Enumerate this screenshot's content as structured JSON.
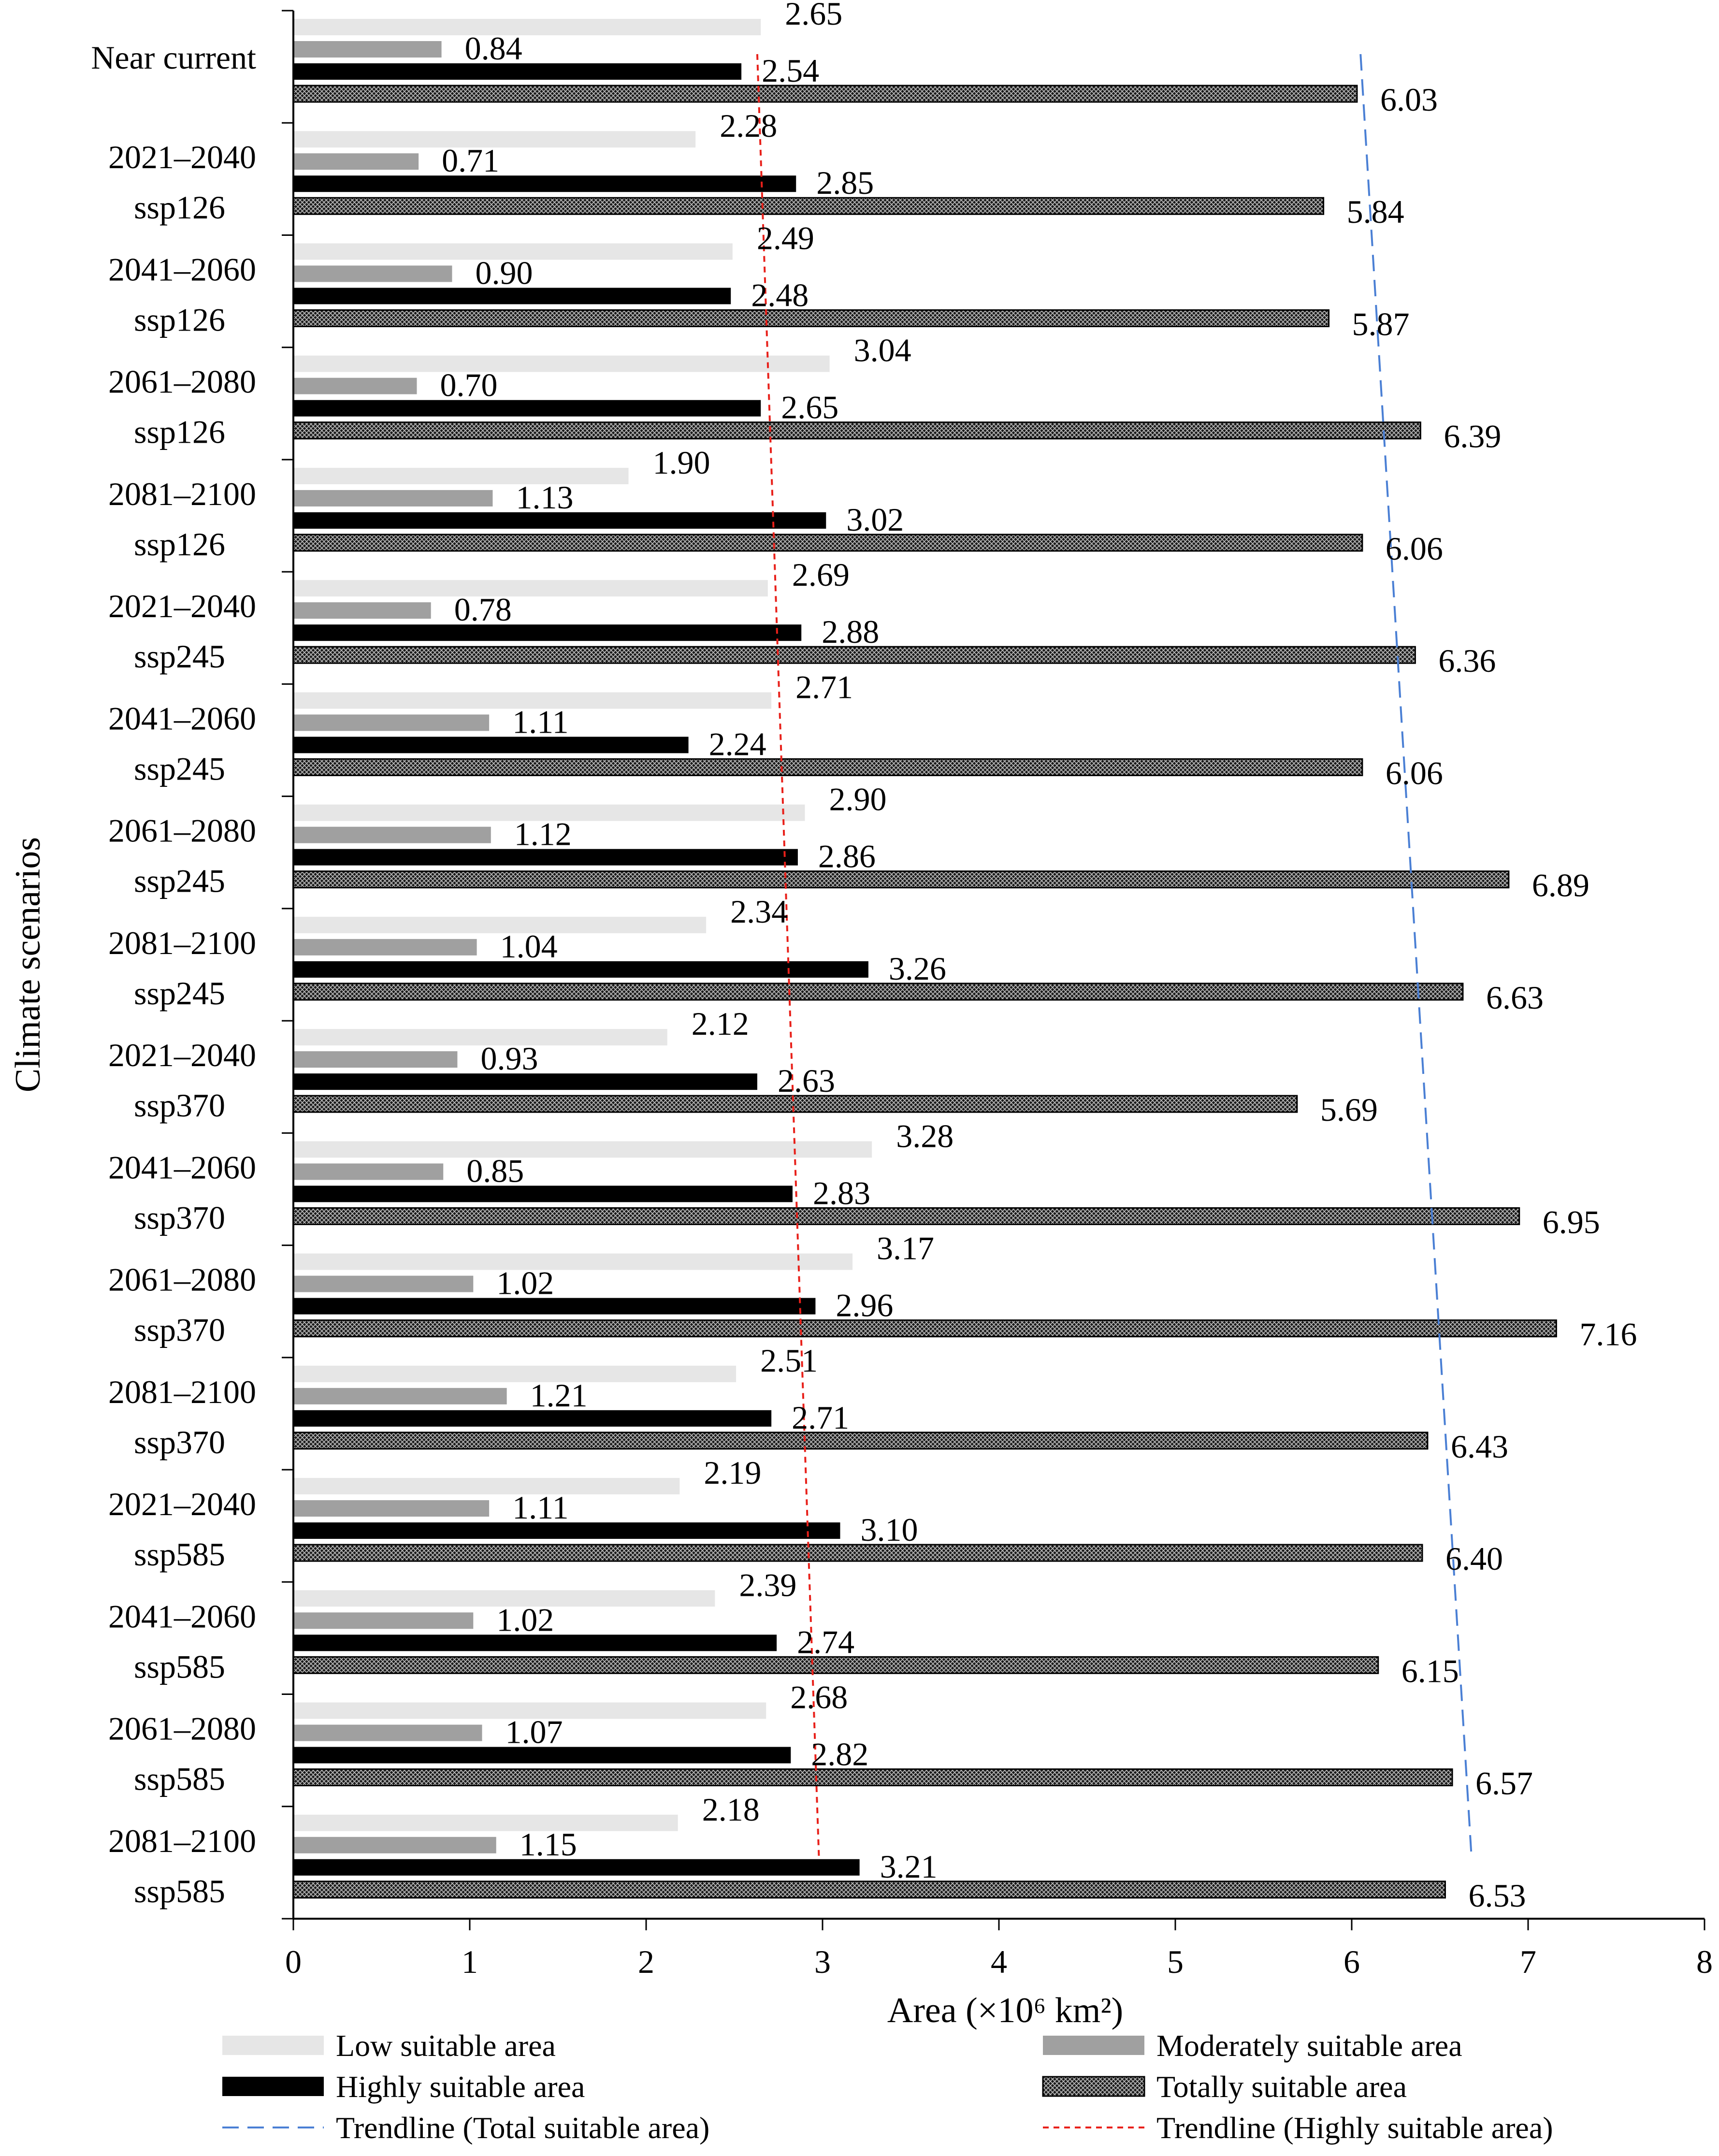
{
  "chart_data": {
    "type": "bar",
    "orientation": "horizontal",
    "categories": [
      [
        "Near current"
      ],
      [
        "2021–2040",
        "ssp126"
      ],
      [
        "2041–2060",
        "ssp126"
      ],
      [
        "2061–2080",
        "ssp126"
      ],
      [
        "2081–2100",
        "ssp126"
      ],
      [
        "2021–2040",
        "ssp245"
      ],
      [
        "2041–2060",
        "ssp245"
      ],
      [
        "2061–2080",
        "ssp245"
      ],
      [
        "2081–2100",
        "ssp245"
      ],
      [
        "2021–2040",
        "ssp370"
      ],
      [
        "2041–2060",
        "ssp370"
      ],
      [
        "2061–2080",
        "ssp370"
      ],
      [
        "2081–2100",
        "ssp370"
      ],
      [
        "2021–2040",
        "ssp585"
      ],
      [
        "2041–2060",
        "ssp585"
      ],
      [
        "2061–2080",
        "ssp585"
      ],
      [
        "2081–2100",
        "ssp585"
      ]
    ],
    "series": [
      {
        "name": "Low suitable area",
        "color": "#e6e6e6",
        "pattern": "solid",
        "values": [
          2.65,
          2.28,
          2.49,
          3.04,
          1.9,
          2.69,
          2.71,
          2.9,
          2.34,
          2.12,
          3.28,
          3.17,
          2.51,
          2.19,
          2.39,
          2.68,
          2.18
        ],
        "labels": [
          "2.65",
          "2.28",
          "2.49",
          "3.04",
          "1.90",
          "2.69",
          "2.71",
          "2.90",
          "2.34",
          "2.12",
          "3.28",
          "3.17",
          "2.51",
          "2.19",
          "2.39",
          "2.68",
          "2.18"
        ]
      },
      {
        "name": "Moderately suitable area",
        "color": "#a0a0a0",
        "pattern": "solid",
        "values": [
          0.84,
          0.71,
          0.9,
          0.7,
          1.13,
          0.78,
          1.11,
          1.12,
          1.04,
          0.93,
          0.85,
          1.02,
          1.21,
          1.11,
          1.02,
          1.07,
          1.15
        ],
        "labels": [
          "0.84",
          "0.71",
          "0.90",
          "0.70",
          "1.13",
          "0.78",
          "1.11",
          "1.12",
          "1.04",
          "0.93",
          "0.85",
          "1.02",
          "1.21",
          "1.11",
          "1.02",
          "1.07",
          "1.15"
        ]
      },
      {
        "name": "Highly suitable area",
        "color": "#000000",
        "pattern": "solid",
        "values": [
          2.54,
          2.85,
          2.48,
          2.65,
          3.02,
          2.88,
          2.24,
          2.86,
          3.26,
          2.63,
          2.83,
          2.96,
          2.71,
          3.1,
          2.74,
          2.82,
          3.21
        ],
        "labels": [
          "2.54",
          "2.85",
          "2.48",
          "2.65",
          "3.02",
          "2.88",
          "2.24",
          "2.86",
          "3.26",
          "2.63",
          "2.83",
          "2.96",
          "2.71",
          "3.10",
          "2.74",
          "2.82",
          "3.21"
        ]
      },
      {
        "name": "Totally suitable area",
        "color": "#111111",
        "pattern": "crosshatch",
        "values": [
          6.03,
          5.84,
          5.87,
          6.39,
          6.06,
          6.36,
          6.06,
          6.89,
          6.63,
          5.69,
          6.95,
          7.16,
          6.43,
          6.4,
          6.15,
          6.57,
          6.53
        ],
        "labels": [
          "6.03",
          "5.84",
          "5.87",
          "6.39",
          "6.06",
          "6.36",
          "6.06",
          "6.89",
          "6.63",
          "5.69",
          "6.95",
          "7.16",
          "6.43",
          "6.40",
          "6.15",
          "6.57",
          "6.53"
        ]
      }
    ],
    "trendlines": [
      {
        "name": "Trendline (Total suitable area)",
        "color": "#4a7fd4",
        "style": "long-dash",
        "start": 6.05,
        "end": 6.68
      },
      {
        "name": "Trendline (Highly suitable area)",
        "color": "#e8201a",
        "style": "short-dash",
        "start": 2.63,
        "end": 2.98
      }
    ],
    "xlabel": "Area (×10⁶ km²)",
    "ylabel": "Climate scenarios",
    "xlim": [
      0,
      8
    ],
    "xticks": [
      "0",
      "1",
      "2",
      "3",
      "4",
      "5",
      "6",
      "7",
      "8"
    ],
    "grid": false,
    "legend_position": "bottom"
  }
}
